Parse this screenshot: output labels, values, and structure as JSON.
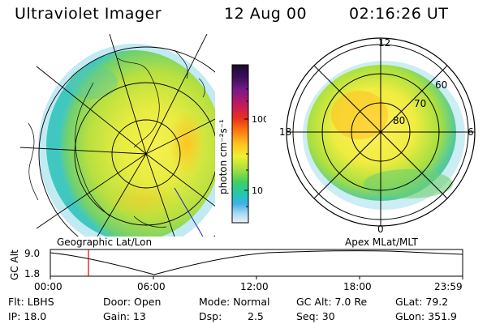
{
  "header": {
    "title": "Ultraviolet Imager",
    "date": "12 Aug 00",
    "time": "02:16:26 UT"
  },
  "left_panel": {
    "caption": "Geographic Lat/Lon"
  },
  "right_panel": {
    "caption": "Apex MLat/MLT",
    "mlt_labels": [
      "12",
      "18",
      "6",
      "0"
    ],
    "mlat_labels": [
      "60",
      "70",
      "80"
    ]
  },
  "colorbar": {
    "unit_label": "photon cm⁻²s⁻¹",
    "tick_labels": [
      "100",
      "10"
    ],
    "colors": [
      "#1a0a2e",
      "#3b0f5a",
      "#7a1a8a",
      "#c41a5a",
      "#e8321a",
      "#ff7a10",
      "#ffc020",
      "#f0f030",
      "#a8e040",
      "#40d060",
      "#20c8b0",
      "#40b0e8",
      "#a8d8f0",
      "#e8f4f8"
    ]
  },
  "altitude_plot": {
    "axis_title": "GC Alt",
    "y_ticks": [
      "9.0",
      "1.8"
    ],
    "x_ticks": [
      "00:00",
      "06:00",
      "12:00",
      "18:00",
      "23:59"
    ],
    "marker_color": "#e00000"
  },
  "info": {
    "flt": "Flt: LBHS",
    "door": "Door: Open",
    "mode": "Mode: Normal",
    "gc_alt": "GC Alt: 7.0 Re",
    "glat": "GLat:  79.2",
    "ip": "IP: 18.0",
    "gain": "Gain: 13",
    "dsp_label": "Dsp:",
    "dsp_value": "2.5",
    "seq": "Seq: 30",
    "glon": "GLon: 351.9"
  }
}
